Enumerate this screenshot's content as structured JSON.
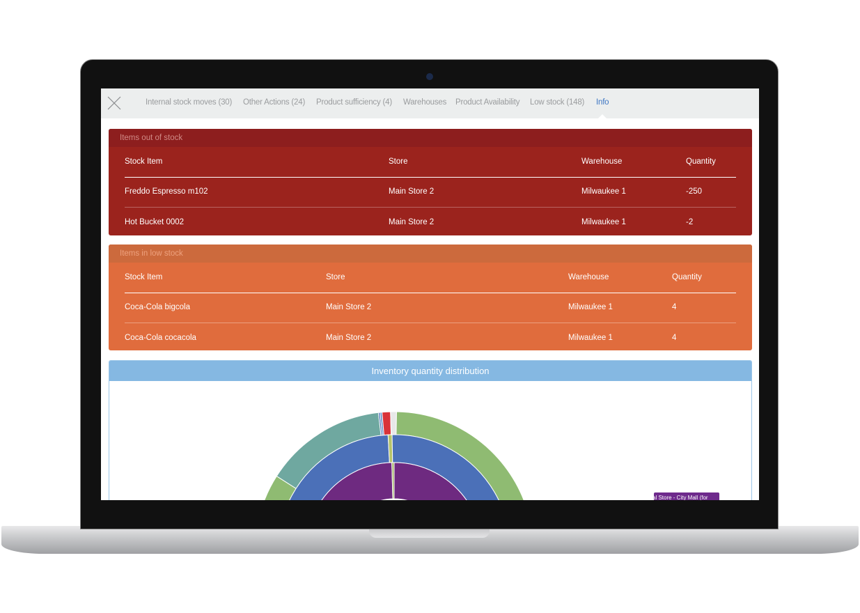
{
  "tabs": [
    "Internal stock moves (30)",
    "Other Actions (24)",
    "Product sufficiency (4)",
    "Warehouses",
    "Product Availability",
    "Low stock (148)",
    "Info"
  ],
  "out_of_stock": {
    "title": "Items out of stock",
    "columns": [
      "Stock Item",
      "Store",
      "Warehouse",
      "Quantity"
    ],
    "rows": [
      [
        "Freddo Espresso m102",
        "Main Store 2",
        "Milwaukee 1",
        "-250"
      ],
      [
        "Hot Bucket 0002",
        "Main Store 2",
        "Milwaukee 1",
        "-2"
      ]
    ]
  },
  "low_stock": {
    "title": "Items in low stock",
    "columns": [
      "Stock Item",
      "Store",
      "Warehouse",
      "Quantity"
    ],
    "rows": [
      [
        "Coca-Cola bigcola",
        "Main Store 2",
        "Milwaukee 1",
        "4"
      ],
      [
        "Coca-Cola cocacola",
        "Main Store 2",
        "Milwaukee 1",
        "4"
      ]
    ]
  },
  "chart": {
    "title": "Inventory quantity distribution",
    "tooltip": "al Store - City Mall (for"
  }
}
